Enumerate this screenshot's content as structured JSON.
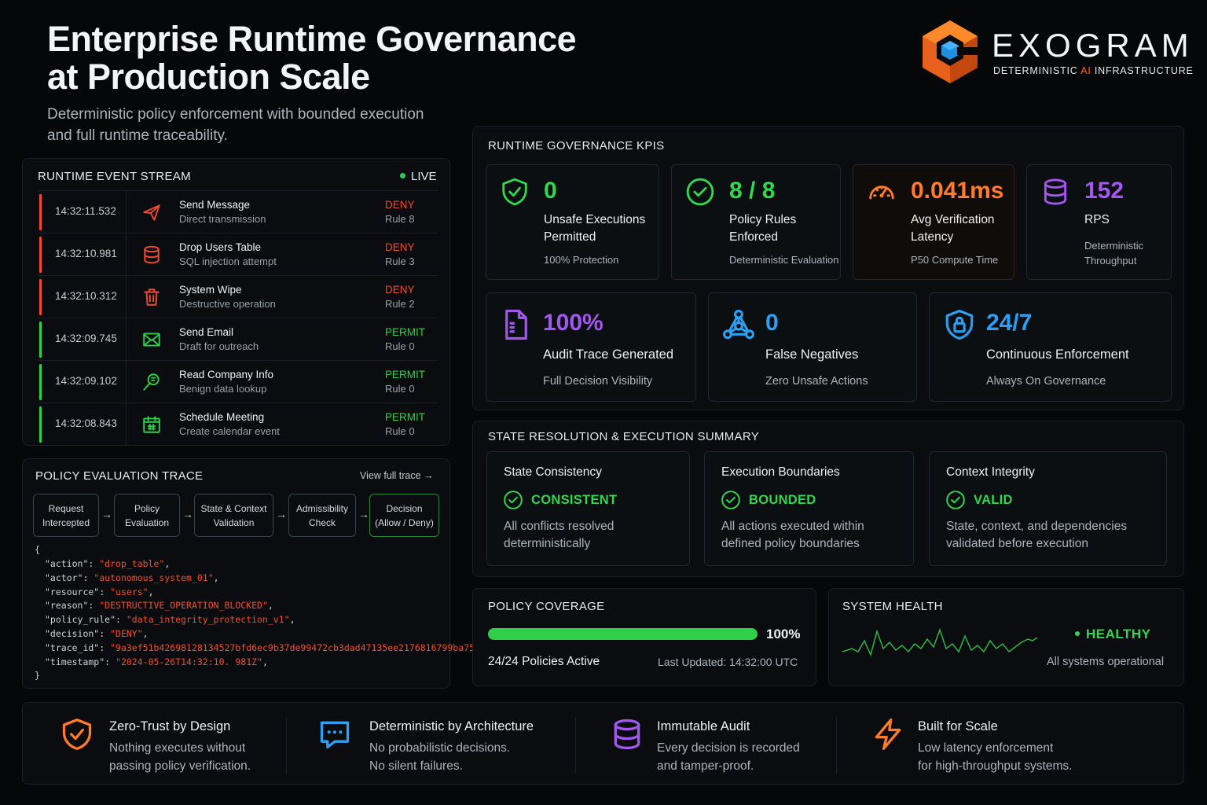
{
  "header": {
    "title_line1": "Enterprise Runtime Governance",
    "title_line2": "at Production Scale",
    "subtitle_line1": "Deterministic policy enforcement with bounded execution",
    "subtitle_line2": "and full runtime traceability."
  },
  "brand": {
    "name": "EXOGRAM",
    "tagline_pre": "DETERMINISTIC ",
    "tagline_ai": "AI",
    "tagline_post": " INFRASTRUCTURE",
    "logo_icon": "hexagon-cube-logo"
  },
  "event_stream": {
    "title": "RUNTIME EVENT STREAM",
    "live_label": "LIVE",
    "events": [
      {
        "time": "14:32:11.532",
        "name": "Send Message",
        "desc": "Direct transmission",
        "decision": "DENY",
        "rule": "Rule 8",
        "icon": "send-icon"
      },
      {
        "time": "14:32:10.981",
        "name": "Drop Users Table",
        "desc": "SQL injection attempt",
        "decision": "DENY",
        "rule": "Rule 3",
        "icon": "database-icon"
      },
      {
        "time": "14:32:10.312",
        "name": "System Wipe",
        "desc": "Destructive operation",
        "decision": "DENY",
        "rule": "Rule 2",
        "icon": "trash-icon"
      },
      {
        "time": "14:32:09.745",
        "name": "Send Email",
        "desc": "Draft for outreach",
        "decision": "PERMIT",
        "rule": "Rule 0",
        "icon": "mail-icon"
      },
      {
        "time": "14:32:09.102",
        "name": "Read Company Info",
        "desc": "Benign data lookup",
        "decision": "PERMIT",
        "rule": "Rule 0",
        "icon": "search-doc-icon"
      },
      {
        "time": "14:32:08.843",
        "name": "Schedule Meeting",
        "desc": "Create calendar event",
        "decision": "PERMIT",
        "rule": "Rule 0",
        "icon": "calendar-icon"
      }
    ]
  },
  "trace": {
    "title": "POLICY EVALUATION TRACE",
    "view_link": "View full trace",
    "flow": [
      {
        "line1": "Request",
        "line2": "Intercepted"
      },
      {
        "line1": "Policy",
        "line2": "Evaluation"
      },
      {
        "line1": "State & Context",
        "line2": "Validation"
      },
      {
        "line1": "Admissibility",
        "line2": "Check"
      },
      {
        "line1": "Decision",
        "line2": "(Allow / Deny)"
      }
    ],
    "code_open": "{",
    "code_close": "}",
    "code_lines": [
      {
        "key": "\"action\"",
        "val": "\"drop_table\""
      },
      {
        "key": "\"actor\"",
        "val": "\"autonomous_system_01\""
      },
      {
        "key": "\"resource\"",
        "val": "\"users\""
      },
      {
        "key": "\"reason\"",
        "val": "\"DESTRUCTIVE_OPERATION_BLOCKED\""
      },
      {
        "key": "\"policy_rule\"",
        "val": "\"data_integrity_protection_v1\""
      },
      {
        "key": "\"decision\"",
        "val": "\"DENY\""
      },
      {
        "key": "\"trace_id\"",
        "val": "\"9a3ef51b42698128134527bfd6ec9b37de99472cb3dad47135ee2176816799ba75\""
      },
      {
        "key": "\"timestamp\"",
        "val": "\"2024-05-26T14:32:10. 981Z\""
      }
    ]
  },
  "kpis": {
    "title": "RUNTIME GOVERNANCE KPIS",
    "row1": [
      {
        "value": "0",
        "label1": "Unsafe Executions",
        "label2": "Permitted",
        "sub1": "100% Protection",
        "sub2": "",
        "icon": "shield-check-icon",
        "color": "#33d64f"
      },
      {
        "value": "8 / 8",
        "label1": "Policy Rules",
        "label2": "Enforced",
        "sub1": "Deterministic Evaluation",
        "sub2": "",
        "icon": "check-circle-icon",
        "color": "#33d64f"
      },
      {
        "value": "0.041ms",
        "label1": "Avg Verification",
        "label2": "Latency",
        "sub1": "P50 Compute Time",
        "sub2": "",
        "icon": "speedometer-icon",
        "color": "#ff7a2a"
      },
      {
        "value": "152",
        "label1": "RPS",
        "label2": "",
        "sub1": "Deterministic",
        "sub2": "Throughput",
        "icon": "database-icon",
        "color": "#a357f0"
      }
    ],
    "row2": [
      {
        "value": "100%",
        "label": "Audit Trace Generated",
        "sub": "Full Decision Visibility",
        "icon": "document-icon",
        "color": "#a357f0"
      },
      {
        "value": "0",
        "label": "False Negatives",
        "sub": "Zero Unsafe Actions",
        "icon": "network-icon",
        "color": "#2f9ef0"
      },
      {
        "value": "24/7",
        "label": "Continuous Enforcement",
        "sub": "Always On Governance",
        "icon": "shield-lock-icon",
        "color": "#2f9ef0"
      }
    ]
  },
  "state_summary": {
    "title": "STATE RESOLUTION & EXECUTION SUMMARY",
    "items": [
      {
        "heading": "State Consistency",
        "status": "CONSISTENT",
        "desc1": "All conflicts resolved",
        "desc2": "deterministically"
      },
      {
        "heading": "Execution Boundaries",
        "status": "BOUNDED",
        "desc1": "All actions executed within",
        "desc2": "defined policy boundaries"
      },
      {
        "heading": "Context Integrity",
        "status": "VALID",
        "desc1": "State, context, and dependencies",
        "desc2": "validated before execution"
      }
    ]
  },
  "coverage": {
    "title": "POLICY COVERAGE",
    "percent": 100,
    "percent_label": "100%",
    "active": "24/24 Policies Active",
    "updated": "Last Updated: 14:32:00 UTC"
  },
  "health": {
    "title": "SYSTEM HEALTH",
    "status": "HEALTHY",
    "desc": "All systems operational",
    "sparkline_icon": "heartbeat-sparkline"
  },
  "features": [
    {
      "title": "Zero-Trust by Design",
      "desc1": "Nothing executes without",
      "desc2": "passing policy verification.",
      "icon": "shield-check-icon",
      "color": "#ff7a2a"
    },
    {
      "title": "Deterministic by Architecture",
      "desc1": "No probabilistic decisions.",
      "desc2": "No silent failures.",
      "icon": "chat-bubble-icon",
      "color": "#2f9ef0"
    },
    {
      "title": "Immutable Audit",
      "desc1": "Every decision is recorded",
      "desc2": "and tamper-proof.",
      "icon": "database-icon",
      "color": "#a357f0"
    },
    {
      "title": "Built for Scale",
      "desc1": "Low latency enforcement",
      "desc2": "for high-throughput systems.",
      "icon": "lightning-icon",
      "color": "#ff7a2a"
    }
  ],
  "colors": {
    "background": "#060708",
    "deny": "#f04a33",
    "permit": "#2fcf4a",
    "accent_orange": "#ff7a2a",
    "accent_purple": "#a357f0",
    "accent_blue": "#2f9ef0",
    "healthy": "#33d64f"
  }
}
